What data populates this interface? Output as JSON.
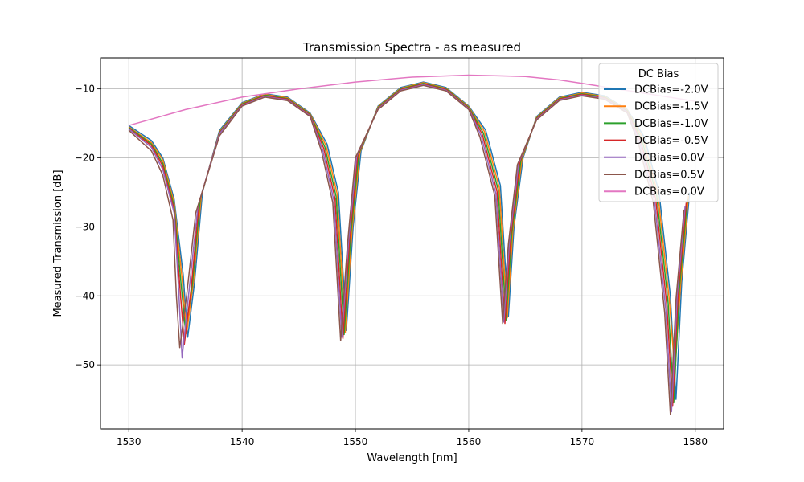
{
  "chart_data": {
    "type": "line",
    "title": "Transmission Spectra - as measured",
    "xlabel": "Wavelength [nm]",
    "ylabel": "Measured Transmission [dB]",
    "xlim": [
      1527.5,
      1582.5
    ],
    "ylim": [
      -59.3,
      -5.5
    ],
    "xticks": [
      1530,
      1540,
      1550,
      1560,
      1570,
      1580
    ],
    "yticks": [
      -10,
      -20,
      -30,
      -40,
      -50
    ],
    "xtick_labels": [
      "1530",
      "1540",
      "1550",
      "1560",
      "1570",
      "1580"
    ],
    "ytick_labels": [
      "−10",
      "−20",
      "−30",
      "−40",
      "−50"
    ],
    "grid": true,
    "legend": {
      "title": "DC Bias",
      "placement": "upper right",
      "entries": [
        "DCBias=-2.0V",
        "DCBias=-1.5V",
        "DCBias=-1.0V",
        "DCBias=-0.5V",
        "DCBias=0.0V",
        "DCBias=0.5V",
        "DCBias=0.0V"
      ]
    },
    "series": [
      {
        "name": "DCBias=-2.0V",
        "color": "#1f77b4",
        "x": [
          1530,
          1532,
          1533,
          1534,
          1534.8,
          1535.2,
          1535.8,
          1536.5,
          1538,
          1540,
          1542,
          1544,
          1546,
          1547.5,
          1548.5,
          1549.2,
          1549.8,
          1550.5,
          1552,
          1554,
          1556,
          1558,
          1560,
          1561.5,
          1562.8,
          1563.5,
          1564,
          1564.8,
          1566,
          1568,
          1570,
          1572,
          1574,
          1575.5,
          1576.8,
          1577.8,
          1578.3,
          1578.8,
          1579.5
        ],
        "y": [
          -15.3,
          -17.5,
          -20,
          -26,
          -37,
          -46,
          -38,
          -25,
          -16,
          -12,
          -10.7,
          -11.2,
          -13.5,
          -18,
          -25,
          -45,
          -30,
          -19,
          -12.5,
          -9.8,
          -9,
          -9.8,
          -12.5,
          -16,
          -24,
          -43,
          -30,
          -20,
          -14,
          -11.2,
          -10.5,
          -11,
          -13,
          -17,
          -25,
          -40,
          -55,
          -38,
          -25
        ]
      },
      {
        "name": "DCBias=-1.5V",
        "color": "#ff7f0e",
        "x": [
          1530,
          1532,
          1533,
          1534,
          1534.7,
          1535.1,
          1535.7,
          1536.4,
          1538,
          1540,
          1542,
          1544,
          1546,
          1547.4,
          1548.4,
          1549.1,
          1549.7,
          1550.4,
          1552,
          1554,
          1556,
          1558,
          1560,
          1561.4,
          1562.7,
          1563.4,
          1563.9,
          1564.7,
          1566,
          1568,
          1570,
          1572,
          1574,
          1575.4,
          1576.7,
          1577.7,
          1578.2,
          1578.7,
          1579.4
        ],
        "y": [
          -15.5,
          -17.8,
          -20.3,
          -26.5,
          -37.5,
          -45.5,
          -38,
          -25.5,
          -16.2,
          -12.1,
          -10.8,
          -11.3,
          -13.6,
          -18.2,
          -25.3,
          -45.3,
          -30.5,
          -19.2,
          -12.6,
          -9.9,
          -9.1,
          -9.9,
          -12.6,
          -16.2,
          -24.3,
          -43.2,
          -30.5,
          -20.2,
          -14.1,
          -11.3,
          -10.6,
          -11.1,
          -13.1,
          -17.2,
          -25.3,
          -40.5,
          -51,
          -38.5,
          -25.5
        ]
      },
      {
        "name": "DCBias=-1.0V",
        "color": "#2ca02c",
        "x": [
          1530,
          1532,
          1533,
          1534,
          1534.6,
          1535,
          1535.6,
          1536.3,
          1538,
          1540,
          1542,
          1544,
          1546,
          1547.3,
          1548.3,
          1549,
          1549.6,
          1550.3,
          1552,
          1554,
          1556,
          1558,
          1560,
          1561.3,
          1562.6,
          1563.3,
          1563.8,
          1564.6,
          1566,
          1568,
          1570,
          1572,
          1574,
          1575.3,
          1576.6,
          1577.6,
          1578.1,
          1578.6,
          1579.3
        ],
        "y": [
          -15.6,
          -18,
          -20.8,
          -27,
          -38,
          -45,
          -38.5,
          -26,
          -16.3,
          -12.2,
          -10.9,
          -11.4,
          -13.7,
          -18.4,
          -25.6,
          -45.6,
          -31,
          -19.4,
          -12.7,
          -10,
          -9.2,
          -10,
          -12.7,
          -16.4,
          -24.6,
          -43.5,
          -31,
          -20.4,
          -14.2,
          -11.4,
          -10.7,
          -11.2,
          -13.2,
          -17.4,
          -25.6,
          -41,
          -55.5,
          -39,
          -26
        ]
      },
      {
        "name": "DCBias=-0.5V",
        "color": "#d62728",
        "x": [
          1530,
          1532,
          1533,
          1534,
          1534.5,
          1534.9,
          1535.5,
          1536.2,
          1538,
          1540,
          1542,
          1544,
          1546,
          1547.2,
          1548.2,
          1548.9,
          1549.5,
          1550.2,
          1552,
          1554,
          1556,
          1558,
          1560,
          1561.2,
          1562.5,
          1563.2,
          1563.7,
          1564.5,
          1566,
          1568,
          1570,
          1572,
          1574,
          1575.2,
          1576.5,
          1577.5,
          1578,
          1578.5,
          1579.2
        ],
        "y": [
          -15.7,
          -18.2,
          -21.2,
          -27.5,
          -38.5,
          -47,
          -39,
          -26.5,
          -16.4,
          -12.3,
          -11,
          -11.5,
          -13.8,
          -18.6,
          -25.9,
          -46.2,
          -31.5,
          -19.6,
          -12.8,
          -10.1,
          -9.3,
          -10.1,
          -12.8,
          -16.6,
          -24.9,
          -44,
          -31.5,
          -20.6,
          -14.3,
          -11.5,
          -10.8,
          -11.3,
          -13.3,
          -17.6,
          -25.9,
          -41.5,
          -56,
          -39.5,
          -26.5
        ]
      },
      {
        "name": "DCBias=0.0V",
        "color": "#9467bd",
        "x": [
          1530,
          1532,
          1533,
          1534,
          1534.4,
          1534.7,
          1535.3,
          1536.1,
          1538,
          1540,
          1542,
          1544,
          1546,
          1547.1,
          1548.1,
          1548.8,
          1549.4,
          1550.1,
          1552,
          1554,
          1556,
          1558,
          1560,
          1561.1,
          1562.4,
          1563.1,
          1563.6,
          1564.4,
          1566,
          1568,
          1570,
          1572,
          1574,
          1575.1,
          1576.4,
          1577.4,
          1577.9,
          1578.4,
          1579.1
        ],
        "y": [
          -15.8,
          -18.5,
          -21.7,
          -28,
          -39,
          -49,
          -39.5,
          -27,
          -16.5,
          -12.4,
          -11.1,
          -11.6,
          -13.9,
          -18.8,
          -26.2,
          -46,
          -32,
          -19.8,
          -12.9,
          -10.2,
          -9.4,
          -10.2,
          -12.9,
          -16.8,
          -25.2,
          -43.8,
          -32,
          -20.8,
          -14.4,
          -11.6,
          -10.9,
          -11.4,
          -13.4,
          -17.8,
          -26.2,
          -42,
          -56.8,
          -40,
          -27
        ]
      },
      {
        "name": "DCBias=0.5V",
        "color": "#8c564b",
        "x": [
          1530,
          1532,
          1533,
          1533.9,
          1534.2,
          1534.5,
          1535.1,
          1535.9,
          1538,
          1540,
          1542,
          1544,
          1546,
          1547,
          1548,
          1548.7,
          1549.3,
          1550,
          1552,
          1554,
          1556,
          1558,
          1560,
          1561,
          1562.3,
          1563,
          1563.5,
          1564.3,
          1566,
          1568,
          1570,
          1572,
          1574,
          1575,
          1576.3,
          1577.3,
          1577.8,
          1578.3,
          1579
        ],
        "y": [
          -16,
          -19,
          -22.5,
          -29,
          -40,
          -47.5,
          -40,
          -28,
          -16.8,
          -12.5,
          -11.2,
          -11.7,
          -14,
          -19,
          -26.5,
          -46.5,
          -32.5,
          -20,
          -13,
          -10.3,
          -9.5,
          -10.3,
          -13,
          -17,
          -25.5,
          -44,
          -32.5,
          -21,
          -14.5,
          -11.7,
          -11,
          -11.5,
          -13.5,
          -18,
          -26.5,
          -42.5,
          -57.2,
          -40.5,
          -27.5
        ]
      },
      {
        "name": "DCBias=0.0V",
        "color": "#e377c2",
        "x": [
          1530,
          1535,
          1540,
          1545,
          1550,
          1555,
          1560,
          1565,
          1568,
          1570,
          1575,
          1580
        ],
        "y": [
          -15.3,
          -13,
          -11.2,
          -10,
          -9,
          -8.3,
          -8,
          -8.2,
          -8.7,
          -9.2,
          -10.5,
          -11.8
        ]
      }
    ]
  }
}
